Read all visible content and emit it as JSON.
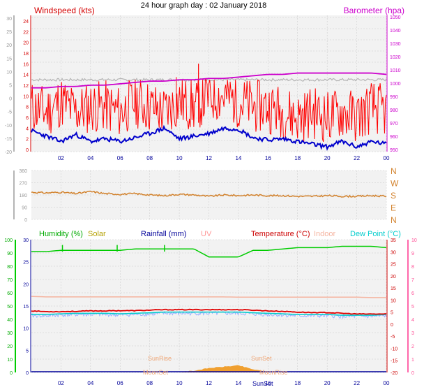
{
  "title": "24 hour graph day : 02 January 2018",
  "colors": {
    "wind_label": "#d40000",
    "wind": "#ff0000",
    "gust": "#ff0000",
    "avg_wind": "#0000cc",
    "baro": "#cc00cc",
    "baro_grey": "#b4b4b4",
    "dir": "#d2822d",
    "humidity": "#00cc00",
    "solar": "#b4a000",
    "rain": "#000099",
    "uv": "#ff9999",
    "temp": "#cc0000",
    "temp_line": "#e00000",
    "indoor": "#f5b4a0",
    "dew": "#00cccc",
    "dewpoint_line": "#9ab0ff",
    "solar_fill": "#f0a030",
    "sun_label": "#f0a878",
    "plot_bg": "#f2f2f2",
    "grid": "#c8c8c8"
  },
  "time_ticks": [
    "02",
    "04",
    "06",
    "08",
    "10",
    "12",
    "14",
    "16",
    "18",
    "20",
    "22",
    "00"
  ],
  "panel1": {
    "label_left": "Windspeed (kts)",
    "label_right": "Barometer (hpa)",
    "axis_outer": [
      "30",
      "25",
      "20",
      "15",
      "10",
      "5",
      "0",
      "-5",
      "-10",
      "-15",
      "-20"
    ],
    "axis_wind": [
      "24",
      "22",
      "20",
      "18",
      "16",
      "14",
      "12",
      "10",
      "8",
      "6",
      "4",
      "2",
      "0"
    ],
    "axis_baro": [
      "1050",
      "1040",
      "1030",
      "1020",
      "1010",
      "1000",
      "990",
      "980",
      "970",
      "960",
      "950"
    ],
    "axis_baro_right": [
      "1040",
      "1030",
      "1020",
      "1010",
      "1000",
      "990",
      "980",
      "970",
      "960",
      "950"
    ]
  },
  "panel2": {
    "axis_left": [
      "360",
      "270",
      "180",
      "90",
      "0"
    ],
    "axis_right": [
      "N",
      "W",
      "S",
      "E",
      "N"
    ]
  },
  "panel3": {
    "legend": {
      "humidity": "Humidity  (%)",
      "solar": "Solar",
      "rainfall": "Rainfall (mm)",
      "uv": "UV",
      "temperature": "Temperature (°C)",
      "indoor": "Indoor",
      "dewpoint": "Dew Point (°C)"
    },
    "axis_humidity": [
      "100",
      "90",
      "80",
      "70",
      "60",
      "50",
      "40",
      "30",
      "20",
      "10",
      "0"
    ],
    "axis_rain": [
      "30",
      "25",
      "20",
      "15",
      "10",
      "5",
      "0"
    ],
    "axis_temp_right": [
      "35",
      "30",
      "25",
      "20",
      "15",
      "10",
      "5",
      "0",
      "-5",
      "-10",
      "-15",
      "-20"
    ],
    "axis_uv": [
      "10",
      "9",
      "8",
      "7",
      "6",
      "5",
      "4",
      "3",
      "2",
      "1",
      "0"
    ],
    "sun_labels": [
      "SunRise",
      "SunSet",
      "MoonSet",
      "MoonRise",
      "SunSet"
    ]
  },
  "chart_data": [
    {
      "type": "line",
      "title": "24 hour graph day : 02 January 2018",
      "x": [
        0,
        1,
        2,
        3,
        4,
        5,
        6,
        7,
        8,
        9,
        10,
        11,
        12,
        13,
        14,
        15,
        16,
        17,
        18,
        19,
        20,
        21,
        22,
        23,
        24
      ],
      "x_tick_labels": [
        "02",
        "04",
        "06",
        "08",
        "10",
        "12",
        "14",
        "16",
        "18",
        "20",
        "22",
        "00"
      ],
      "ylabel": "Windspeed (kts)",
      "ylabel_right": "Barometer (hpa)",
      "ylim": [
        0,
        25
      ],
      "ylim_right": [
        950,
        1050
      ],
      "series": [
        {
          "name": "Windspeed (kts)",
          "axis": "left",
          "values": [
            8,
            7,
            9,
            7,
            8,
            8,
            7,
            9,
            8,
            7,
            9,
            8,
            10,
            10,
            9,
            8,
            8,
            7,
            6,
            7,
            6,
            7,
            6,
            8,
            7
          ]
        },
        {
          "name": "Windspeed (kts)",
          "axis": "left",
          "values": [
            3.5,
            2.5,
            1.5,
            2.8,
            1.5,
            2,
            1.5,
            2.2,
            3,
            4,
            2,
            2.5,
            3,
            4,
            3.8,
            2.2,
            1.8,
            2,
            1.5,
            1,
            0.5,
            1.5,
            0.5,
            1.5,
            1
          ]
        },
        {
          "name": "Barometer (hpa)",
          "axis": "right",
          "values": [
            996,
            996,
            997,
            997,
            998,
            998,
            999,
            1000,
            1001,
            1001,
            1002,
            1002,
            1003,
            1003,
            1004,
            1005,
            1006,
            1006,
            1007,
            1007,
            1007,
            1007,
            1007,
            1007,
            1006
          ]
        }
      ]
    },
    {
      "type": "line",
      "x": [
        0,
        1,
        2,
        3,
        4,
        5,
        6,
        7,
        8,
        9,
        10,
        11,
        12,
        13,
        14,
        15,
        16,
        17,
        18,
        19,
        20,
        21,
        22,
        23,
        24
      ],
      "ylim": [
        0,
        360
      ],
      "y_tick_labels_right": [
        "N",
        "W",
        "S",
        "E",
        "N"
      ],
      "series": [
        {
          "name": "",
          "values": [
            200,
            195,
            200,
            190,
            205,
            190,
            185,
            190,
            180,
            175,
            185,
            180,
            170,
            180,
            175,
            180,
            175,
            175,
            170,
            170,
            175,
            170,
            170,
            175,
            170
          ]
        }
      ]
    },
    {
      "type": "line",
      "x": [
        0,
        1,
        2,
        3,
        4,
        5,
        6,
        7,
        8,
        9,
        10,
        11,
        12,
        13,
        14,
        15,
        16,
        17,
        18,
        19,
        20,
        21,
        22,
        23,
        24
      ],
      "series": [
        {
          "name": "Humidity  (%)",
          "axis": "humidity",
          "ylim": [
            0,
            100
          ],
          "values": [
            91,
            91,
            92,
            92,
            92,
            92,
            92,
            93,
            93,
            93,
            93,
            93,
            87,
            87,
            87,
            92,
            92,
            93,
            94,
            94,
            94,
            95,
            95,
            95,
            94
          ]
        },
        {
          "name": "Temperature (°C)",
          "axis": "temperature",
          "ylim": [
            -20,
            35
          ],
          "values": [
            5.5,
            5.2,
            5.2,
            5.3,
            5.5,
            5.5,
            5.6,
            5.6,
            5.8,
            6,
            6,
            6,
            6,
            6,
            6,
            5.8,
            5.5,
            5.3,
            5,
            4.8,
            4.8,
            4.5,
            4.2,
            4.2,
            4.2
          ]
        },
        {
          "name": "Indoor",
          "axis": "temperature",
          "ylim": [
            -20,
            35
          ],
          "values": [
            11.5,
            11.3,
            11.3,
            11.3,
            11.3,
            11.3,
            11.3,
            11.3,
            11.3,
            11.3,
            11.3,
            11.3,
            11.3,
            11.3,
            11.2,
            11.2,
            11.2,
            11.2,
            11.2,
            11.2,
            11.2,
            11.2,
            11.2,
            11.0,
            11.0
          ]
        },
        {
          "name": "Dew Point (°C)",
          "axis": "temperature",
          "ylim": [
            -20,
            35
          ],
          "values": [
            3.5,
            3.5,
            3.8,
            4,
            4,
            4,
            3.8,
            4,
            4.2,
            4.5,
            4.5,
            4.5,
            4.5,
            4.5,
            4.5,
            4.2,
            4,
            3.8,
            3.5,
            3.5,
            3.5,
            3.2,
            3.2,
            3.2,
            3.5
          ]
        },
        {
          "name": "Solar",
          "axis": "humidity",
          "ylim": [
            0,
            100
          ],
          "values": [
            0,
            0,
            0,
            0,
            0,
            0,
            0,
            0,
            0,
            0,
            0,
            1,
            3,
            4,
            5,
            2,
            0,
            0,
            0,
            0,
            0,
            0,
            0,
            0,
            0
          ]
        },
        {
          "name": "Rainfall (mm)",
          "axis": "rain",
          "ylim": [
            0,
            30
          ],
          "values": [
            0,
            0,
            0,
            0,
            0,
            0,
            0,
            0,
            0,
            0,
            0,
            0,
            0,
            0,
            0,
            0,
            0,
            0,
            0,
            0,
            0,
            0,
            0,
            0,
            0
          ]
        }
      ]
    }
  ]
}
